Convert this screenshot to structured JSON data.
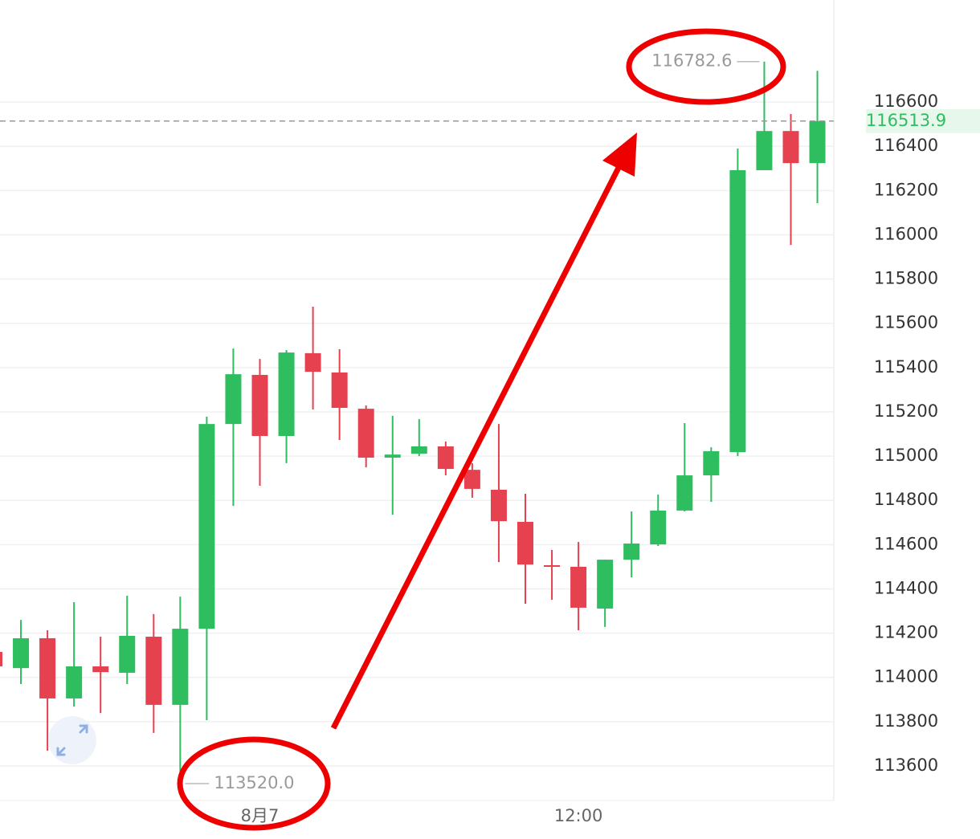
{
  "chart_data": {
    "type": "candlestick",
    "categories": [
      null,
      null,
      null,
      null,
      null,
      null,
      null,
      null,
      null,
      null,
      "8月7",
      null,
      null,
      null,
      null,
      null,
      null,
      null,
      null,
      null,
      null,
      null,
      "12:00",
      null,
      null,
      null,
      null,
      null,
      null,
      null,
      null,
      null
    ],
    "open": [
      114115,
      114042,
      114177,
      113905,
      114050,
      114021,
      114184,
      113876,
      114220,
      115145,
      115367,
      115091,
      115465,
      115378,
      115214,
      114993,
      115011,
      115044,
      114938,
      114848,
      114703,
      114507,
      114500,
      114311,
      114532,
      114601,
      114754,
      114913,
      115018,
      116292,
      116469,
      116324
    ],
    "high": [
      114115,
      114260,
      114213,
      114340,
      114184,
      114369,
      114286,
      114365,
      115178,
      115486,
      115439,
      115479,
      115675,
      115483,
      115229,
      115182,
      115167,
      115066,
      114968,
      115145,
      114830,
      114576,
      114612,
      114532,
      114750,
      114826,
      115149,
      115040,
      116390,
      116782.6,
      116546,
      116741
    ],
    "low": [
      114050,
      113970,
      113669,
      113868,
      113839,
      113970,
      113749,
      113520,
      113807,
      114775,
      114866,
      114968,
      115211,
      115073,
      114949,
      114735,
      115000,
      114913,
      114812,
      114521,
      114333,
      114351,
      114213,
      114228,
      114452,
      114594,
      114750,
      114793,
      115000,
      116292,
      115954,
      116143
    ],
    "close": [
      114050,
      114177,
      113905,
      114050,
      114024,
      114188,
      113876,
      114220,
      115145,
      115370,
      115091,
      115468,
      115381,
      115218,
      114993,
      115007,
      115044,
      114942,
      114852,
      114706,
      114510,
      114500,
      114315,
      114532,
      114605,
      114754,
      114913,
      115022,
      116292,
      116469,
      116324,
      116513.9
    ],
    "up_color": "#2ebd5f",
    "down_color": "#e5414f",
    "ylim": [
      113444,
      117061
    ],
    "yticks": [
      113600,
      113800,
      114000,
      114200,
      114400,
      114600,
      114800,
      115000,
      115200,
      115400,
      115600,
      115800,
      116000,
      116200,
      116400,
      116600
    ],
    "grid": true,
    "min_label": {
      "value": 113520,
      "label": "113520.0"
    }
  }
}
